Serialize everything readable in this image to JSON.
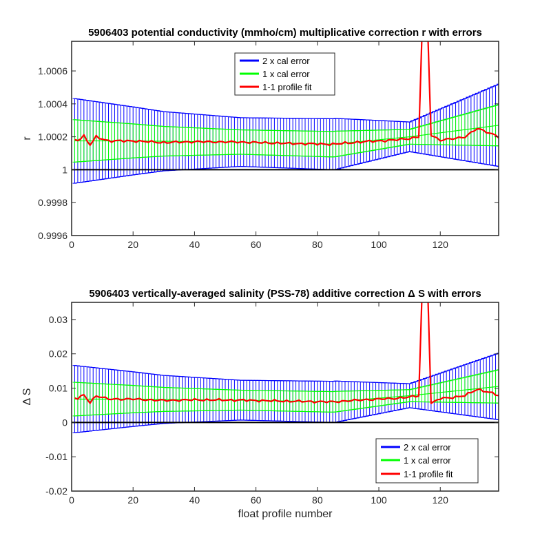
{
  "colors": {
    "blue": "#0000ff",
    "green": "#00ff00",
    "red": "#ff0000",
    "zero_line": "#000000"
  },
  "chart_data": [
    {
      "type": "line",
      "title": "5906403 potential conductivity (mmho/cm) multiplicative correction r with errors",
      "xlabel": "",
      "ylabel": "r",
      "xlim": [
        0,
        139
      ],
      "ylim": [
        0.9996,
        1.00078
      ],
      "xticks": [
        0,
        20,
        40,
        60,
        80,
        100,
        120
      ],
      "yticks": [
        0.9996,
        0.9998,
        1,
        1.0002,
        1.0004,
        1.0006
      ],
      "ytick_labels": [
        "0.9996",
        "0.9998",
        "1",
        "1.0002",
        "1.0004",
        "1.0006"
      ],
      "grid": false,
      "legend_position": "top-center",
      "legend": [
        "2 x cal error",
        "1 x cal error",
        "1-1 profile fit"
      ],
      "reference_line_y": 1,
      "series": [
        {
          "name": "2 x cal error",
          "color": "blue",
          "center_anchors": [
            [
              0,
              1.000175
            ],
            [
              20,
              1.000175
            ],
            [
              55,
              1.000168
            ],
            [
              85,
              1.000155
            ],
            [
              110,
              1.0002
            ],
            [
              139,
              1.00027
            ]
          ],
          "halfwidth_anchors": [
            [
              0,
              0.00026
            ],
            [
              30,
              0.00018
            ],
            [
              55,
              0.000148
            ],
            [
              86,
              0.000155
            ],
            [
              110,
              9e-05
            ],
            [
              139,
              0.00025
            ]
          ]
        },
        {
          "name": "1 x cal error",
          "color": "green",
          "center_anchors": [
            [
              0,
              1.000175
            ],
            [
              20,
              1.000175
            ],
            [
              55,
              1.000168
            ],
            [
              85,
              1.000155
            ],
            [
              110,
              1.0002
            ],
            [
              139,
              1.00027
            ]
          ],
          "halfwidth_anchors": [
            [
              0,
              0.00013
            ],
            [
              30,
              9e-05
            ],
            [
              55,
              7.4e-05
            ],
            [
              86,
              7.75e-05
            ],
            [
              110,
              4.5e-05
            ],
            [
              139,
              0.000125
            ]
          ]
        },
        {
          "name": "1-1 profile fit",
          "color": "red",
          "anchors": [
            [
              0,
              1.00019
            ],
            [
              2,
              1.00018
            ],
            [
              4,
              1.000205
            ],
            [
              6,
              1.00015
            ],
            [
              8,
              1.0002
            ],
            [
              12,
              1.000175
            ],
            [
              20,
              1.000175
            ],
            [
              30,
              1.000165
            ],
            [
              40,
              1.00017
            ],
            [
              55,
              1.000168
            ],
            [
              70,
              1.00016
            ],
            [
              85,
              1.000155
            ],
            [
              95,
              1.00017
            ],
            [
              105,
              1.00018
            ],
            [
              110,
              1.00019
            ],
            [
              113,
              1.0002
            ],
            [
              114,
              1.0008
            ],
            [
              116,
              1.0008
            ],
            [
              117,
              1.00021
            ],
            [
              120,
              1.00018
            ],
            [
              125,
              1.00019
            ],
            [
              128,
              1.0002
            ],
            [
              132,
              1.00025
            ],
            [
              135,
              1.00023
            ],
            [
              138,
              1.00021
            ],
            [
              139,
              1.0002
            ]
          ]
        }
      ]
    },
    {
      "type": "line",
      "title": "5906403 vertically-averaged salinity (PSS-78) additive correction Δ S with errors",
      "xlabel": "float profile number",
      "ylabel": "Δ S",
      "xlim": [
        0,
        139
      ],
      "ylim": [
        -0.02,
        0.035
      ],
      "xticks": [
        0,
        20,
        40,
        60,
        80,
        100,
        120
      ],
      "yticks": [
        -0.02,
        -0.01,
        0,
        0.01,
        0.02,
        0.03
      ],
      "ytick_labels": [
        "-0.02",
        "-0.01",
        "0",
        "0.01",
        "0.02",
        "0.03"
      ],
      "grid": false,
      "legend_position": "bottom-right",
      "legend": [
        "2 x cal error",
        "1 x cal error",
        "1-1 profile fit"
      ],
      "reference_line_y": 0,
      "series": [
        {
          "name": "2 x cal error",
          "color": "blue",
          "center_anchors": [
            [
              0,
              0.0068
            ],
            [
              20,
              0.0068
            ],
            [
              55,
              0.0065
            ],
            [
              85,
              0.006
            ],
            [
              110,
              0.0078
            ],
            [
              139,
              0.0105
            ]
          ],
          "halfwidth_anchors": [
            [
              0,
              0.0099
            ],
            [
              30,
              0.007
            ],
            [
              55,
              0.0058
            ],
            [
              86,
              0.006
            ],
            [
              110,
              0.0035
            ],
            [
              139,
              0.0097
            ]
          ]
        },
        {
          "name": "1 x cal error",
          "color": "green",
          "center_anchors": [
            [
              0,
              0.0068
            ],
            [
              20,
              0.0068
            ],
            [
              55,
              0.0065
            ],
            [
              85,
              0.006
            ],
            [
              110,
              0.0078
            ],
            [
              139,
              0.0105
            ]
          ],
          "halfwidth_anchors": [
            [
              0,
              0.00495
            ],
            [
              30,
              0.0035
            ],
            [
              55,
              0.0029
            ],
            [
              86,
              0.003
            ],
            [
              110,
              0.00175
            ],
            [
              139,
              0.00485
            ]
          ]
        },
        {
          "name": "1-1 profile fit",
          "color": "red",
          "anchors": [
            [
              0,
              0.0073
            ],
            [
              2,
              0.007
            ],
            [
              4,
              0.008
            ],
            [
              6,
              0.0058
            ],
            [
              8,
              0.0078
            ],
            [
              12,
              0.0068
            ],
            [
              20,
              0.0068
            ],
            [
              30,
              0.0064
            ],
            [
              40,
              0.0066
            ],
            [
              55,
              0.0065
            ],
            [
              70,
              0.0062
            ],
            [
              85,
              0.006
            ],
            [
              95,
              0.0066
            ],
            [
              105,
              0.007
            ],
            [
              110,
              0.0074
            ],
            [
              113,
              0.0078
            ],
            [
              114,
              0.036
            ],
            [
              116,
              0.036
            ],
            [
              117,
              0.0055
            ],
            [
              120,
              0.007
            ],
            [
              125,
              0.0074
            ],
            [
              128,
              0.0078
            ],
            [
              132,
              0.0097
            ],
            [
              135,
              0.009
            ],
            [
              138,
              0.0082
            ],
            [
              139,
              0.0078
            ]
          ]
        }
      ]
    }
  ]
}
